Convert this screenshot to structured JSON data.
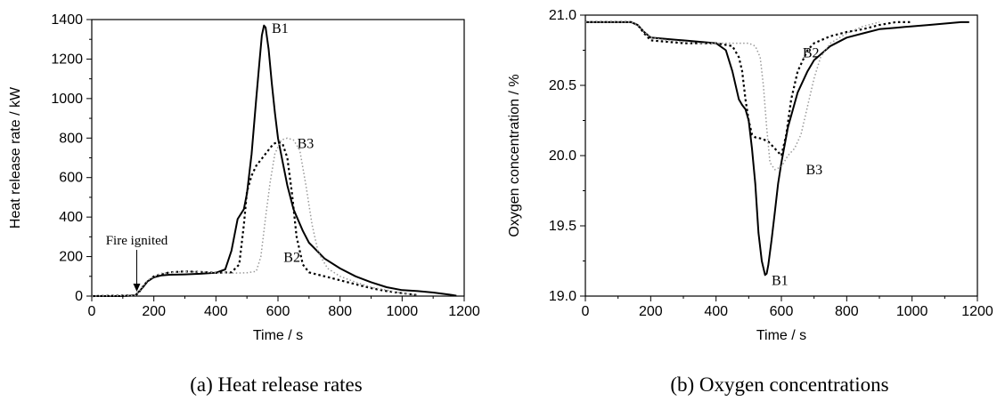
{
  "chart_data": [
    {
      "type": "line",
      "caption": "(a) Heat release rates",
      "xlabel": "Time / s",
      "ylabel": "Heat release rate / kW",
      "xlim": [
        0,
        1200
      ],
      "ylim": [
        0,
        1400
      ],
      "xticks": [
        "0",
        "200",
        "400",
        "600",
        "800",
        "1000",
        "1200"
      ],
      "yticks": [
        "0",
        "200",
        "400",
        "600",
        "800",
        "1000",
        "1200",
        "1400"
      ],
      "grid": false,
      "annotations": [
        {
          "text": "Fire ignited",
          "x": 145,
          "y": 0
        }
      ],
      "series": [
        {
          "name": "B1",
          "style": "solid",
          "color": "#000000",
          "x": [
            0,
            100,
            140,
            150,
            165,
            180,
            200,
            225,
            250,
            300,
            350,
            400,
            430,
            450,
            470,
            490,
            500,
            515,
            530,
            540,
            548,
            555,
            560,
            570,
            580,
            590,
            600,
            615,
            630,
            650,
            680,
            700,
            750,
            800,
            850,
            900,
            950,
            1000,
            1050,
            1100,
            1150,
            1175
          ],
          "y": [
            0,
            0,
            3,
            20,
            45,
            75,
            95,
            105,
            108,
            110,
            113,
            118,
            135,
            230,
            390,
            440,
            520,
            720,
            1000,
            1180,
            1320,
            1370,
            1360,
            1250,
            1080,
            930,
            800,
            680,
            560,
            440,
            330,
            270,
            190,
            140,
            100,
            70,
            45,
            30,
            25,
            18,
            8,
            2
          ]
        },
        {
          "name": "B2",
          "style": "dotted",
          "color": "#000000",
          "x": [
            0,
            140,
            150,
            170,
            200,
            250,
            300,
            350,
            400,
            450,
            475,
            490,
            500,
            515,
            530,
            550,
            570,
            585,
            600,
            615,
            630,
            645,
            660,
            680,
            700,
            750,
            800,
            850,
            900,
            950,
            1000,
            1050
          ],
          "y": [
            0,
            3,
            15,
            60,
            100,
            120,
            125,
            122,
            118,
            120,
            160,
            360,
            530,
            610,
            660,
            700,
            740,
            770,
            780,
            770,
            700,
            520,
            300,
            160,
            120,
            100,
            80,
            60,
            40,
            25,
            15,
            5
          ]
        },
        {
          "name": "B3",
          "style": "dotted-light",
          "color": "#999999",
          "x": [
            0,
            140,
            150,
            180,
            220,
            300,
            350,
            400,
            450,
            500,
            530,
            545,
            560,
            575,
            590,
            610,
            630,
            650,
            670,
            690,
            710,
            730,
            760,
            800,
            850,
            900,
            950,
            1000,
            1050
          ],
          "y": [
            0,
            3,
            20,
            80,
            115,
            125,
            122,
            118,
            116,
            118,
            125,
            200,
            400,
            580,
            720,
            790,
            800,
            790,
            740,
            560,
            360,
            220,
            140,
            100,
            70,
            45,
            30,
            15,
            5
          ]
        }
      ],
      "series_labels": [
        {
          "text": "B1",
          "x": 580,
          "y": 1355
        },
        {
          "text": "B2",
          "x": 618,
          "y": 195
        },
        {
          "text": "B3",
          "x": 662,
          "y": 772
        }
      ]
    },
    {
      "type": "line",
      "caption": "(b) Oxygen concentrations",
      "xlabel": "Time / s",
      "ylabel": "Oxygen concentration / %",
      "xlim": [
        0,
        1200
      ],
      "ylim": [
        19.0,
        21.0
      ],
      "xticks": [
        "0",
        "200",
        "400",
        "600",
        "800",
        "1000",
        "1200"
      ],
      "yticks": [
        "19.0",
        "19.5",
        "20.0",
        "20.5",
        "21.0"
      ],
      "grid": false,
      "series": [
        {
          "name": "B1",
          "style": "solid",
          "color": "#000000",
          "x": [
            0,
            140,
            160,
            180,
            200,
            250,
            300,
            350,
            400,
            430,
            450,
            470,
            480,
            490,
            500,
            510,
            520,
            530,
            540,
            550,
            555,
            560,
            570,
            580,
            590,
            600,
            620,
            650,
            680,
            700,
            750,
            800,
            850,
            900,
            950,
            1000,
            1050,
            1100,
            1150,
            1175
          ],
          "y": [
            20.95,
            20.95,
            20.93,
            20.88,
            20.84,
            20.83,
            20.82,
            20.81,
            20.8,
            20.75,
            20.6,
            20.4,
            20.36,
            20.33,
            20.25,
            20.05,
            19.8,
            19.45,
            19.25,
            19.15,
            19.16,
            19.22,
            19.4,
            19.6,
            19.8,
            19.95,
            20.2,
            20.45,
            20.6,
            20.68,
            20.78,
            20.84,
            20.87,
            20.9,
            20.91,
            20.92,
            20.93,
            20.94,
            20.95,
            20.95
          ]
        },
        {
          "name": "B2",
          "style": "dotted",
          "color": "#000000",
          "x": [
            0,
            140,
            160,
            180,
            200,
            250,
            300,
            350,
            400,
            450,
            470,
            480,
            490,
            500,
            510,
            520,
            540,
            560,
            580,
            600,
            615,
            630,
            650,
            680,
            700,
            750,
            800,
            850,
            900,
            950,
            1000
          ],
          "y": [
            20.95,
            20.95,
            20.93,
            20.87,
            20.82,
            20.81,
            20.8,
            20.8,
            20.8,
            20.78,
            20.7,
            20.6,
            20.4,
            20.25,
            20.15,
            20.13,
            20.12,
            20.1,
            20.05,
            20.0,
            20.15,
            20.4,
            20.6,
            20.75,
            20.8,
            20.85,
            20.88,
            20.9,
            20.93,
            20.95,
            20.95
          ]
        },
        {
          "name": "B3",
          "style": "dotted-light",
          "color": "#999999",
          "x": [
            0,
            140,
            160,
            180,
            200,
            250,
            300,
            350,
            400,
            450,
            500,
            520,
            535,
            545,
            555,
            565,
            580,
            600,
            620,
            640,
            660,
            680,
            700,
            720,
            750,
            800,
            850,
            900
          ],
          "y": [
            20.95,
            20.95,
            20.93,
            20.88,
            20.84,
            20.82,
            20.81,
            20.8,
            20.8,
            20.8,
            20.8,
            20.78,
            20.7,
            20.5,
            20.2,
            19.95,
            19.9,
            19.92,
            20.0,
            20.05,
            20.15,
            20.35,
            20.55,
            20.7,
            20.8,
            20.87,
            20.92,
            20.95
          ]
        }
      ],
      "series_labels": [
        {
          "text": "B2",
          "x": 665,
          "y": 20.73
        },
        {
          "text": "B3",
          "x": 675,
          "y": 19.9
        },
        {
          "text": "B1",
          "x": 570,
          "y": 19.11
        }
      ]
    }
  ]
}
